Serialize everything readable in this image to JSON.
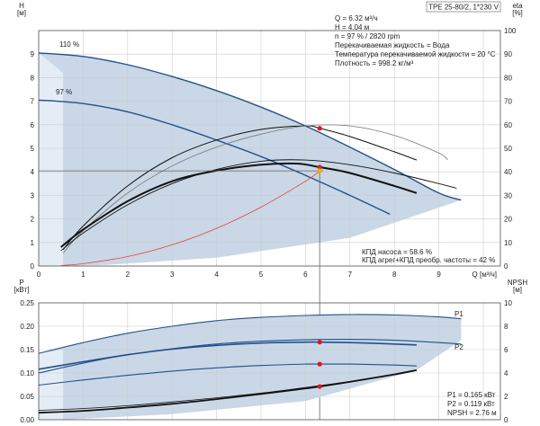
{
  "chart_data": [
    {
      "type": "line",
      "title": "TPE 25-80/2, 1*230 V",
      "xlabel": "Q [м³/ч]",
      "ylabel": "H [м]",
      "y2label": "eta [%]",
      "xlim": [
        0,
        10
      ],
      "ylim": [
        0,
        10
      ],
      "y2lim": [
        0,
        100
      ],
      "xticks": [
        "0",
        "1",
        "2",
        "3",
        "4",
        "5",
        "6",
        "7",
        "8",
        "9"
      ],
      "yticks": [
        "0",
        "1",
        "2",
        "3",
        "4",
        "5",
        "6",
        "7",
        "8",
        "9"
      ],
      "y2ticks": [
        "0",
        "10",
        "20",
        "30",
        "40",
        "50",
        "60",
        "70",
        "80",
        "90",
        "100"
      ],
      "grid": true,
      "curve_labels": [
        "110 %",
        "97 %"
      ],
      "series": [
        {
          "name": "110 %",
          "x": [
            0,
            1,
            2,
            3,
            4,
            5,
            6,
            7,
            8,
            9,
            9.5
          ],
          "y": [
            9.05,
            8.9,
            8.55,
            8.05,
            7.45,
            6.75,
            5.95,
            5.05,
            4.1,
            3.1,
            2.8
          ]
        },
        {
          "name": "97 %",
          "x": [
            0,
            1,
            2,
            3,
            4,
            5,
            6,
            7,
            7.9
          ],
          "y": [
            7.05,
            6.9,
            6.55,
            6.0,
            5.35,
            4.65,
            3.85,
            3.0,
            2.2
          ]
        },
        {
          "x": [
            0.55,
            1,
            2,
            3,
            4,
            5,
            6,
            6.32,
            7,
            8,
            8.5
          ],
          "y": [
            0.7,
            1.7,
            3.4,
            4.6,
            5.35,
            5.8,
            5.95,
            5.85,
            5.5,
            4.85,
            4.5
          ]
        },
        {
          "x": [
            0.55,
            1,
            2,
            3,
            4,
            5,
            6,
            7,
            8,
            9,
            9.2
          ],
          "y": [
            0.55,
            1.5,
            3.1,
            4.25,
            5.05,
            5.6,
            5.95,
            5.95,
            5.55,
            4.8,
            4.5
          ]
        },
        {
          "x": [
            0.5,
            1,
            2,
            3,
            4,
            5,
            5.8,
            6.32,
            7,
            8,
            8.5
          ],
          "y": [
            0.8,
            1.55,
            2.75,
            3.6,
            4.05,
            4.3,
            4.35,
            4.2,
            3.95,
            3.4,
            3.1
          ]
        },
        {
          "x": [
            0.5,
            1,
            2,
            3,
            4,
            5,
            6,
            7,
            8,
            9,
            9.4
          ],
          "y": [
            0.65,
            1.4,
            2.6,
            3.5,
            4.1,
            4.45,
            4.5,
            4.3,
            3.95,
            3.5,
            3.3
          ]
        },
        {
          "x": [
            0.5,
            1,
            2,
            3,
            4,
            5,
            6,
            6.32
          ],
          "y": [
            0.02,
            0.1,
            0.4,
            0.9,
            1.6,
            2.5,
            3.6,
            4.04
          ]
        }
      ],
      "duty_point": {
        "x": 6.32,
        "y": 4.04
      },
      "annotations": [
        "Q = 6.32 м³/ч",
        "H = 4.04 м",
        "n = 97 % / 2820 rpm",
        "Перекачиваемая жидкость = Вода",
        "Температура перекачиваемой жидкости = 20 °C",
        "Плотность = 998.2 кг/м³"
      ],
      "efficiency_notes": [
        "КПД насоса = 58.6 %",
        "КПД агрег+КПД преобр. частоты = 42 %"
      ]
    },
    {
      "type": "line",
      "xlabel": "",
      "ylabel": "P [кВт]",
      "y2label": "NPSH [м]",
      "xlim": [
        0,
        10
      ],
      "ylim": [
        0,
        0.25
      ],
      "y2lim": [
        0,
        10
      ],
      "yticks": [
        "0.00",
        "0.05",
        "0.10",
        "0.15",
        "0.20",
        "0.25"
      ],
      "y2ticks": [
        "0",
        "2",
        "4",
        "6",
        "8",
        "10"
      ],
      "grid": true,
      "curve_labels": [
        "P1",
        "P2"
      ],
      "series": [
        {
          "name": "P1",
          "x": [
            0,
            1,
            2,
            3,
            4,
            5,
            6,
            7,
            8,
            9,
            9.5
          ],
          "y": [
            0.142,
            0.165,
            0.185,
            0.2,
            0.212,
            0.219,
            0.223,
            0.225,
            0.224,
            0.22,
            0.216
          ]
        },
        {
          "x": [
            0,
            1,
            2,
            3,
            4,
            5,
            6,
            6.32,
            7,
            8,
            8.5
          ],
          "y": [
            0.108,
            0.124,
            0.139,
            0.151,
            0.159,
            0.164,
            0.166,
            0.166,
            0.165,
            0.162,
            0.16
          ]
        },
        {
          "name": "P2",
          "x": [
            0,
            1,
            2,
            3,
            4,
            5,
            6,
            7,
            8,
            9,
            9.5
          ],
          "y": [
            0.1,
            0.121,
            0.139,
            0.152,
            0.162,
            0.168,
            0.171,
            0.172,
            0.17,
            0.165,
            0.162
          ]
        },
        {
          "x": [
            0,
            1,
            2,
            3,
            4,
            5,
            6,
            6.32,
            7,
            8,
            8.5
          ],
          "y": [
            0.074,
            0.085,
            0.095,
            0.104,
            0.111,
            0.116,
            0.119,
            0.119,
            0.119,
            0.117,
            0.115
          ]
        },
        {
          "x": [
            0,
            1,
            2,
            3,
            4,
            5,
            6,
            6.32,
            7,
            8,
            8.5
          ],
          "y": [
            0.015,
            0.019,
            0.026,
            0.034,
            0.044,
            0.055,
            0.067,
            0.071,
            0.081,
            0.097,
            0.106
          ]
        },
        {
          "x": [
            0,
            1,
            2,
            3,
            4,
            5,
            6,
            7,
            8,
            8.5
          ],
          "y": [
            0.02,
            0.024,
            0.03,
            0.038,
            0.047,
            0.057,
            0.069,
            0.082,
            0.097,
            0.106
          ]
        }
      ],
      "duty_marks": [
        {
          "x": 6.32,
          "y": 0.166
        },
        {
          "x": 6.32,
          "y": 0.119
        },
        {
          "x": 6.32,
          "y": 0.071
        }
      ],
      "annotations": [
        "P1 = 0.165 кВт",
        "P2 = 0.119 кВт",
        "NPSH = 2.76 м"
      ]
    }
  ],
  "colors": {
    "envelope": "#c9d7e6",
    "envelope_light": "#e4edf6",
    "pump_curve": "#22518c",
    "black_curve": "#111111",
    "grey_curve": "#777777",
    "red_curve": "#e8433a",
    "grid": "#cccccc",
    "duty_dot": "#e0151b",
    "duty_star": "#f2c200"
  }
}
